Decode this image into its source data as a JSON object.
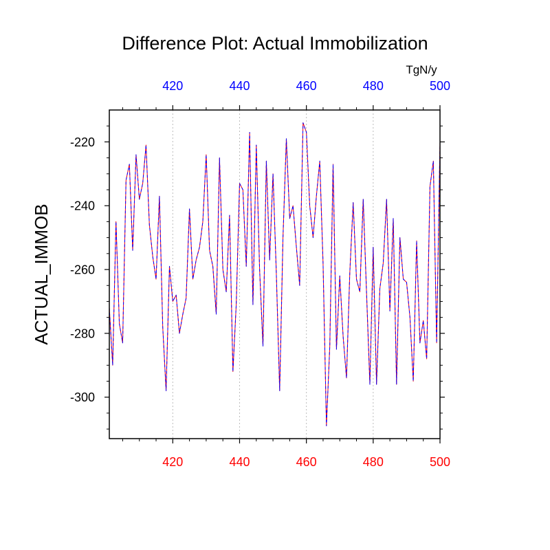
{
  "chart_data": {
    "type": "line",
    "title": "Difference Plot: Actual Immobilization",
    "ylabel": "ACTUAL_IMMOB",
    "units_label": "TgN/y",
    "xlim": [
      401,
      500
    ],
    "ylim": [
      -313,
      -210
    ],
    "x_ticks": [
      420,
      440,
      460,
      480,
      500
    ],
    "x_tick_labels": [
      "420",
      "440",
      "460",
      "480",
      "500"
    ],
    "y_ticks": [
      -220,
      -240,
      -260,
      -280,
      -300
    ],
    "y_tick_labels": [
      "-220",
      "-240",
      "-260",
      "-280",
      "-300"
    ],
    "bottom_axis_color": "#ff0000",
    "top_axis_color": "#0000ff",
    "gridlines": "vertical dotted at major x ticks",
    "series": [
      {
        "name": "dataset 1",
        "color": "#ff0000",
        "style": "solid",
        "x": [
          401,
          402,
          403,
          404,
          405,
          406,
          407,
          408,
          409,
          410,
          411,
          412,
          413,
          414,
          415,
          416,
          417,
          418,
          419,
          420,
          421,
          422,
          423,
          424,
          425,
          426,
          427,
          428,
          429,
          430,
          431,
          432,
          433,
          434,
          435,
          436,
          437,
          438,
          439,
          440,
          441,
          442,
          443,
          444,
          445,
          446,
          447,
          448,
          449,
          450,
          451,
          452,
          453,
          454,
          455,
          456,
          457,
          458,
          459,
          460,
          461,
          462,
          463,
          464,
          465,
          466,
          467,
          468,
          469,
          470,
          471,
          472,
          473,
          474,
          475,
          476,
          477,
          478,
          479,
          480,
          481,
          482,
          483,
          484,
          485,
          486,
          487,
          488,
          489,
          490,
          491,
          492,
          493,
          494,
          495,
          496,
          497,
          498,
          499,
          500
        ],
        "values": [
          -272,
          -290,
          -245,
          -277,
          -283,
          -232,
          -227,
          -254,
          -224,
          -238,
          -233,
          -221,
          -246,
          -256,
          -263,
          -237,
          -278,
          -298,
          -259,
          -270,
          -268,
          -280,
          -274,
          -269,
          -241,
          -263,
          -257,
          -253,
          -245,
          -224,
          -254,
          -259,
          -274,
          -225,
          -260,
          -267,
          -243,
          -292,
          -271,
          -233,
          -235,
          -259,
          -217,
          -271,
          -221,
          -260,
          -284,
          -226,
          -257,
          -230,
          -261,
          -298,
          -250,
          -219,
          -244,
          -240,
          -253,
          -265,
          -214,
          -217,
          -240,
          -250,
          -237,
          -226,
          -258,
          -309,
          -284,
          -227,
          -285,
          -262,
          -281,
          -294,
          -261,
          -239,
          -263,
          -267,
          -238,
          -267,
          -296,
          -253,
          -296,
          -266,
          -258,
          -238,
          -273,
          -244,
          -296,
          -250,
          -263,
          -264,
          -275,
          -295,
          -251,
          -283,
          -276,
          -288,
          -234,
          -226,
          -283,
          -220
        ]
      },
      {
        "name": "dataset 2",
        "color": "#0000ff",
        "style": "dashed",
        "x": [
          401,
          402,
          403,
          404,
          405,
          406,
          407,
          408,
          409,
          410,
          411,
          412,
          413,
          414,
          415,
          416,
          417,
          418,
          419,
          420,
          421,
          422,
          423,
          424,
          425,
          426,
          427,
          428,
          429,
          430,
          431,
          432,
          433,
          434,
          435,
          436,
          437,
          438,
          439,
          440,
          441,
          442,
          443,
          444,
          445,
          446,
          447,
          448,
          449,
          450,
          451,
          452,
          453,
          454,
          455,
          456,
          457,
          458,
          459,
          460,
          461,
          462,
          463,
          464,
          465,
          466,
          467,
          468,
          469,
          470,
          471,
          472,
          473,
          474,
          475,
          476,
          477,
          478,
          479,
          480,
          481,
          482,
          483,
          484,
          485,
          486,
          487,
          488,
          489,
          490,
          491,
          492,
          493,
          494,
          495,
          496,
          497,
          498,
          499,
          500
        ],
        "values": [
          -272,
          -290,
          -245,
          -277,
          -283,
          -232,
          -227,
          -254,
          -224,
          -238,
          -233,
          -221,
          -246,
          -256,
          -263,
          -237,
          -278,
          -298,
          -259,
          -270,
          -268,
          -280,
          -274,
          -269,
          -241,
          -263,
          -257,
          -253,
          -245,
          -224,
          -254,
          -259,
          -274,
          -225,
          -260,
          -267,
          -243,
          -292,
          -271,
          -233,
          -235,
          -259,
          -217,
          -271,
          -221,
          -260,
          -284,
          -226,
          -257,
          -230,
          -261,
          -298,
          -250,
          -219,
          -244,
          -240,
          -253,
          -265,
          -214,
          -217,
          -240,
          -250,
          -237,
          -226,
          -258,
          -309,
          -284,
          -227,
          -285,
          -262,
          -281,
          -294,
          -261,
          -239,
          -263,
          -267,
          -238,
          -267,
          -296,
          -253,
          -296,
          -266,
          -258,
          -238,
          -273,
          -244,
          -296,
          -250,
          -263,
          -264,
          -275,
          -295,
          -251,
          -283,
          -276,
          -288,
          -234,
          -226,
          -283,
          -220
        ]
      }
    ]
  }
}
